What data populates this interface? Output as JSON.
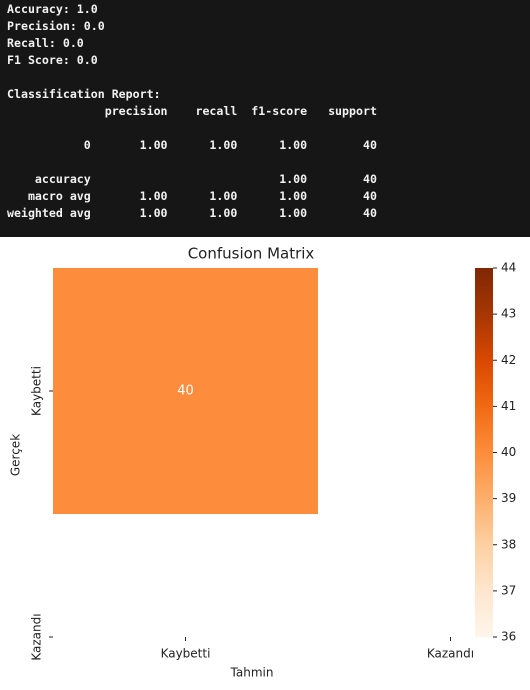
{
  "console": {
    "metrics": [
      "Accuracy: 1.0",
      "Precision: 0.0",
      "Recall: 0.0",
      "F1 Score: 0.0"
    ],
    "report": {
      "title": "Classification Report:",
      "header": "              precision    recall  f1-score   support",
      "rows": [
        "           0       1.00      1.00      1.00        40"
      ],
      "summary": [
        "    accuracy                           1.00        40",
        "   macro avg       1.00      1.00      1.00        40",
        "weighted avg       1.00      1.00      1.00        40"
      ]
    }
  },
  "chart_data": {
    "type": "heatmap",
    "title": "Confusion Matrix",
    "x_label": "Tahmin",
    "y_label": "Gerçek",
    "x_categories": [
      "Kaybetti",
      "Kazandı"
    ],
    "y_categories": [
      "Kaybetti",
      "Kazandı"
    ],
    "values": [
      [
        40,
        null
      ],
      [
        null,
        null
      ]
    ],
    "colormap": "Oranges",
    "clim": [
      36,
      44
    ],
    "cticks": [
      36,
      37,
      38,
      39,
      40,
      41,
      42,
      43,
      44
    ]
  }
}
